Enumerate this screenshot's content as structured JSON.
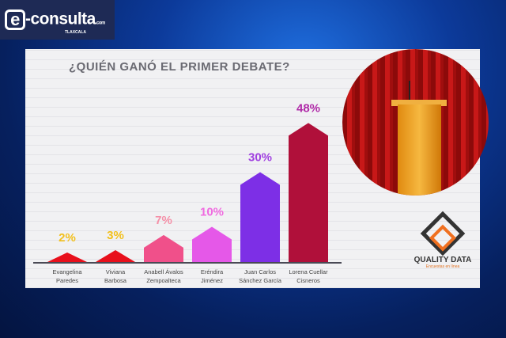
{
  "header": {
    "logo_text": "e-consulta",
    "logo_suffix": ".com",
    "region": "TLAXCALA"
  },
  "sponsor": {
    "name": "QUALITY DATA",
    "tagline": "Encuestas en línea"
  },
  "chart_data": {
    "type": "bar",
    "title": "¿QUIÉN GANÓ EL PRIMER DEBATE?",
    "categories": [
      "Evangelina Paredes",
      "Viviana Barbosa",
      "Anabell Ávalos Zempoalteca",
      "Eréndira Jiménez",
      "Juan Carlos Sánchez García",
      "Lorena Cuellar Cisneros"
    ],
    "category_lines": [
      [
        "Evangelina",
        "Paredes"
      ],
      [
        "Viviana",
        "Barbosa"
      ],
      [
        "Anabell Ávalos",
        "Zempoalteca"
      ],
      [
        "Eréndira",
        "Jiménez"
      ],
      [
        "Juan Carlos",
        "Sánchez García"
      ],
      [
        "Lorena Cuellar",
        "Cisneros"
      ]
    ],
    "values": [
      2,
      3,
      7,
      10,
      30,
      48
    ],
    "value_labels": [
      "2%",
      "3%",
      "7%",
      "10%",
      "30%",
      "48%"
    ],
    "bar_colors": [
      "#e8101c",
      "#e8101c",
      "#f0508a",
      "#e558e8",
      "#7d2fe6",
      "#b0103a"
    ],
    "label_colors": [
      "#f2c01e",
      "#f2c01e",
      "#f590a8",
      "#f06ae0",
      "#a040e0",
      "#b02aa8"
    ],
    "ylim": [
      0,
      50
    ],
    "grid": true
  }
}
